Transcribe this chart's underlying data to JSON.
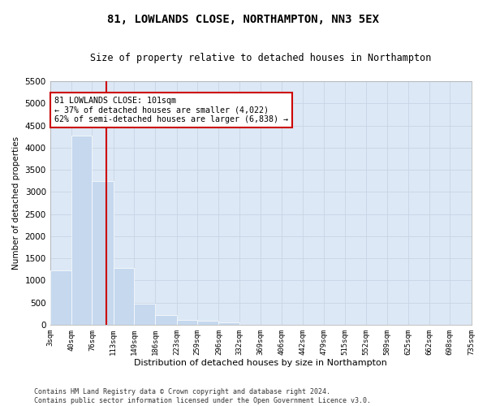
{
  "title": "81, LOWLANDS CLOSE, NORTHAMPTON, NN3 5EX",
  "subtitle": "Size of property relative to detached houses in Northampton",
  "xlabel": "Distribution of detached houses by size in Northampton",
  "ylabel": "Number of detached properties",
  "bar_color": "#c5d8ee",
  "grid_color": "#c8d4e4",
  "background_color": "#dce8f5",
  "vline_color": "#cc0000",
  "bin_edges": [
    3,
    40,
    76,
    113,
    149,
    186,
    223,
    259,
    296,
    332,
    369,
    406,
    442,
    479,
    515,
    552,
    589,
    625,
    662,
    698,
    735
  ],
  "bin_labels": [
    "3sqm",
    "40sqm",
    "76sqm",
    "113sqm",
    "149sqm",
    "186sqm",
    "223sqm",
    "259sqm",
    "296sqm",
    "332sqm",
    "369sqm",
    "406sqm",
    "442sqm",
    "479sqm",
    "515sqm",
    "552sqm",
    "589sqm",
    "625sqm",
    "662sqm",
    "698sqm",
    "735sqm"
  ],
  "bar_heights": [
    1230,
    4280,
    3250,
    1280,
    470,
    210,
    105,
    80,
    60,
    0,
    0,
    0,
    0,
    0,
    0,
    0,
    0,
    0,
    0,
    0
  ],
  "ylim": [
    0,
    5500
  ],
  "yticks": [
    0,
    500,
    1000,
    1500,
    2000,
    2500,
    3000,
    3500,
    4000,
    4500,
    5000,
    5500
  ],
  "vline_x": 101,
  "annotation_line1": "81 LOWLANDS CLOSE: 101sqm",
  "annotation_line2": "← 37% of detached houses are smaller (4,022)",
  "annotation_line3": "62% of semi-detached houses are larger (6,838) →",
  "footnote": "Contains HM Land Registry data © Crown copyright and database right 2024.\nContains public sector information licensed under the Open Government Licence v3.0."
}
